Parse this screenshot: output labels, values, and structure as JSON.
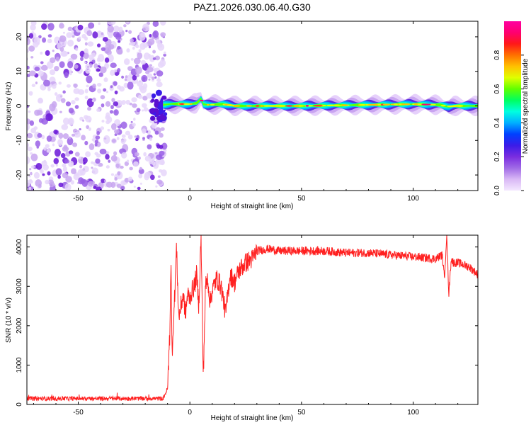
{
  "chart_data": [
    {
      "type": "heatmap",
      "title": "PAZ1.2026.030.06.40.G30",
      "xlabel": "Height of straight line (km)",
      "ylabel": "Frequency (Hz)",
      "xlim": [
        -73,
        129
      ],
      "ylim": [
        -24.5,
        24.5
      ],
      "xticks": [
        -50,
        0,
        50,
        100
      ],
      "yticks": [
        -20,
        -10,
        0,
        10,
        20
      ],
      "noise_region_x": [
        -73,
        -12
      ],
      "signal_trace": {
        "x": [
          -12,
          -8,
          0,
          3,
          5,
          6,
          8,
          15,
          20,
          30,
          50,
          80,
          100,
          112,
          116,
          118,
          129
        ],
        "freq": [
          0.3,
          0.6,
          0.5,
          0.8,
          2.0,
          0.5,
          0.3,
          0.5,
          0.0,
          0.0,
          0.0,
          0.3,
          0.5,
          0.3,
          -0.3,
          0.0,
          0.0
        ]
      },
      "colorbar": {
        "label": "Normalized spectral amplitude",
        "range": [
          0.0,
          1.0
        ],
        "ticks": [
          "0.0",
          "0.2",
          "0.4",
          "0.6",
          "0.8"
        ],
        "colors": [
          "#f4e8ff",
          "#d9b8f5",
          "#a06ae6",
          "#7a2de0",
          "#3a1ce8",
          "#0040ff",
          "#00b0ff",
          "#00ffe0",
          "#00ff60",
          "#60ff00",
          "#e0ff00",
          "#ffc000",
          "#ff7000",
          "#ff1818",
          "#ff0070",
          "#ff00a0"
        ]
      }
    },
    {
      "type": "line",
      "xlabel": "Height of straight line (km)",
      "ylabel": "SNR (10 * v/v)",
      "xlim": [
        -73,
        129
      ],
      "ylim": [
        0,
        4300
      ],
      "xticks": [
        -50,
        0,
        50,
        100
      ],
      "yticks": [
        0,
        1000,
        2000,
        3000,
        4000
      ],
      "color": "#ff2020",
      "series": [
        {
          "name": "SNR",
          "x": [
            -73,
            -60,
            -40,
            -20,
            -12,
            -10,
            -9,
            -8.5,
            -8,
            -7,
            -6,
            -5,
            -4,
            -3,
            -2,
            -1,
            0,
            1,
            2,
            3,
            4,
            5,
            6,
            7,
            8,
            9,
            10,
            12,
            14,
            16,
            18,
            20,
            22,
            25,
            28,
            30,
            35,
            40,
            50,
            60,
            70,
            80,
            90,
            100,
            110,
            113,
            114,
            115,
            116,
            117,
            118,
            120,
            125,
            129
          ],
          "y": [
            150,
            150,
            150,
            150,
            150,
            400,
            1800,
            3700,
            1300,
            2500,
            4000,
            2200,
            2500,
            2800,
            2300,
            2800,
            2700,
            2900,
            3000,
            3300,
            2500,
            4300,
            700,
            3000,
            3200,
            2600,
            2900,
            3200,
            3000,
            2300,
            3300,
            3100,
            3400,
            3600,
            3700,
            3900,
            3950,
            3900,
            3900,
            3900,
            3850,
            3850,
            3800,
            3750,
            3700,
            3800,
            3200,
            4300,
            2800,
            3700,
            3600,
            3600,
            3500,
            3300
          ]
        }
      ]
    }
  ]
}
